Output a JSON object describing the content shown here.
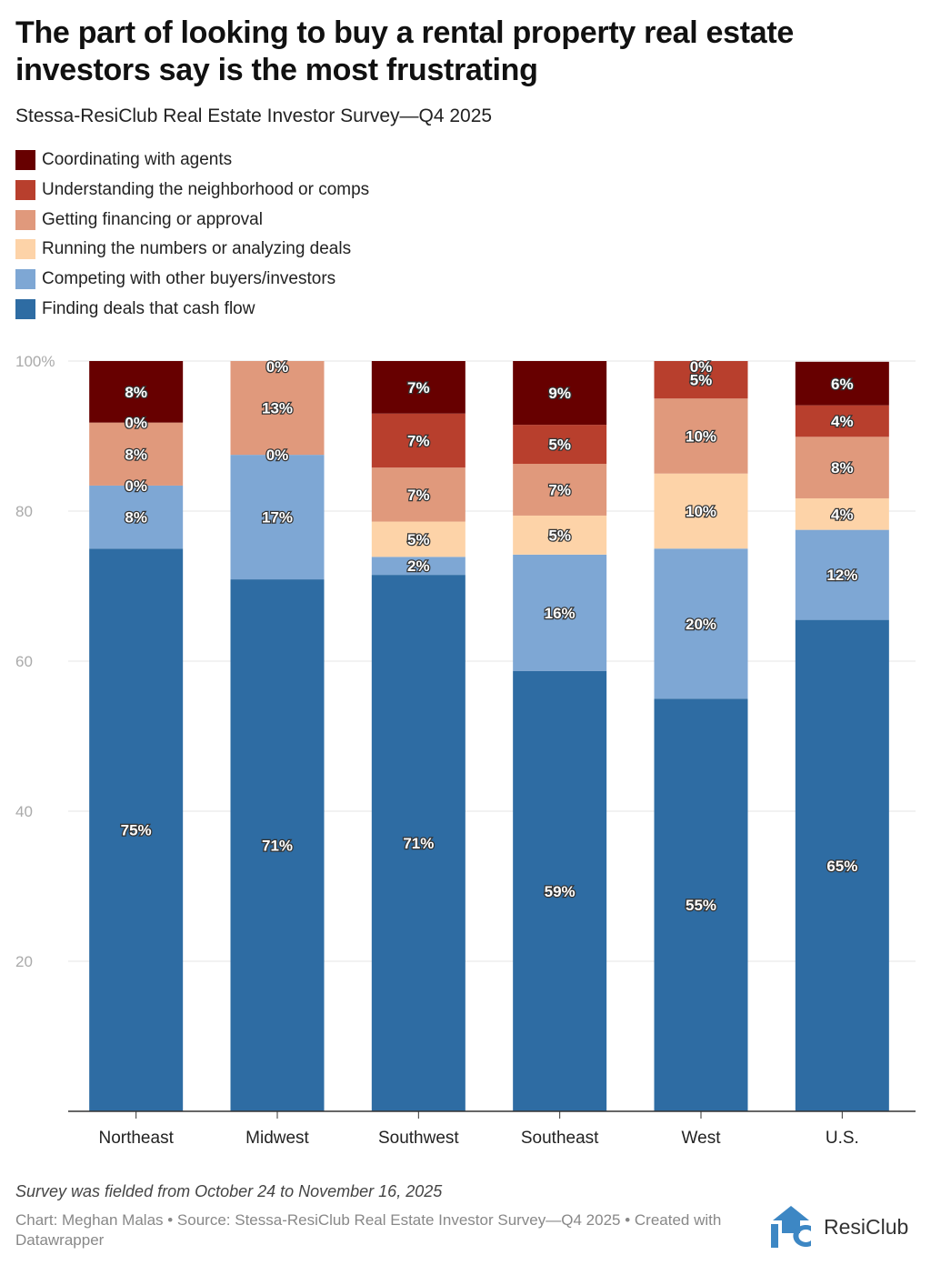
{
  "chart_data": {
    "type": "bar",
    "stacked": true,
    "title": "The part of looking to buy a rental property real estate investors say is the most frustrating",
    "subtitle": "Stessa-ResiClub Real Estate Investor Survey—Q4 2025",
    "xlabel": "",
    "ylabel": "",
    "ylim": [
      0,
      100
    ],
    "yticks": [
      "20",
      "40",
      "60",
      "80",
      "100%"
    ],
    "ytick_values": [
      20,
      40,
      60,
      80,
      100
    ],
    "grid": true,
    "legend_position": "top-left",
    "categories": [
      "Northeast",
      "Midwest",
      "Southwest",
      "Southeast",
      "West",
      "U.S."
    ],
    "series": [
      {
        "name": "Finding deals that cash flow",
        "color": "#2e6ca3",
        "values": [
          75,
          70.9,
          71.5,
          58.7,
          55,
          65.5
        ],
        "labels": [
          "75%",
          "71%",
          "71%",
          "59%",
          "55%",
          "65%"
        ]
      },
      {
        "name": "Competing with other buyers/investors",
        "color": "#7ea7d4",
        "values": [
          8.4,
          16.6,
          2.4,
          15.5,
          20,
          12
        ],
        "labels": [
          "8%",
          "17%",
          "2%",
          "16%",
          "20%",
          "12%"
        ]
      },
      {
        "name": "Running the numbers or analyzing deals",
        "color": "#fdd3a8",
        "values": [
          0,
          0,
          4.7,
          5.2,
          10,
          4.2
        ],
        "labels": [
          "0%",
          "0%",
          "5%",
          "5%",
          "10%",
          "4%"
        ]
      },
      {
        "name": "Getting financing or approval",
        "color": "#e0997c",
        "values": [
          8.4,
          12.5,
          7.2,
          6.9,
          10,
          8.2
        ],
        "labels": [
          "8%",
          "13%",
          "7%",
          "7%",
          "10%",
          "8%"
        ]
      },
      {
        "name": "Understanding the neighborhood or comps",
        "color": "#b83f2d",
        "values": [
          0,
          0,
          7.2,
          5.2,
          5,
          4.2
        ],
        "labels": [
          "0%",
          "",
          "7%",
          "5%",
          "5%",
          "4%"
        ]
      },
      {
        "name": "Coordinating with agents",
        "color": "#670000",
        "values": [
          8.2,
          0,
          7,
          8.5,
          0,
          5.8
        ],
        "labels": [
          "8%",
          "0%",
          "7%",
          "9%",
          "0%",
          "6%"
        ]
      }
    ]
  },
  "notes": "Survey was fielded from October 24 to November 16, 2025",
  "source": "Chart: Meghan Malas • Source: Stessa-ResiClub Real Estate Investor Survey—Q4 2025 • Created with Datawrapper",
  "logo": {
    "text": "ResiClub",
    "color": "#3d87c4"
  }
}
